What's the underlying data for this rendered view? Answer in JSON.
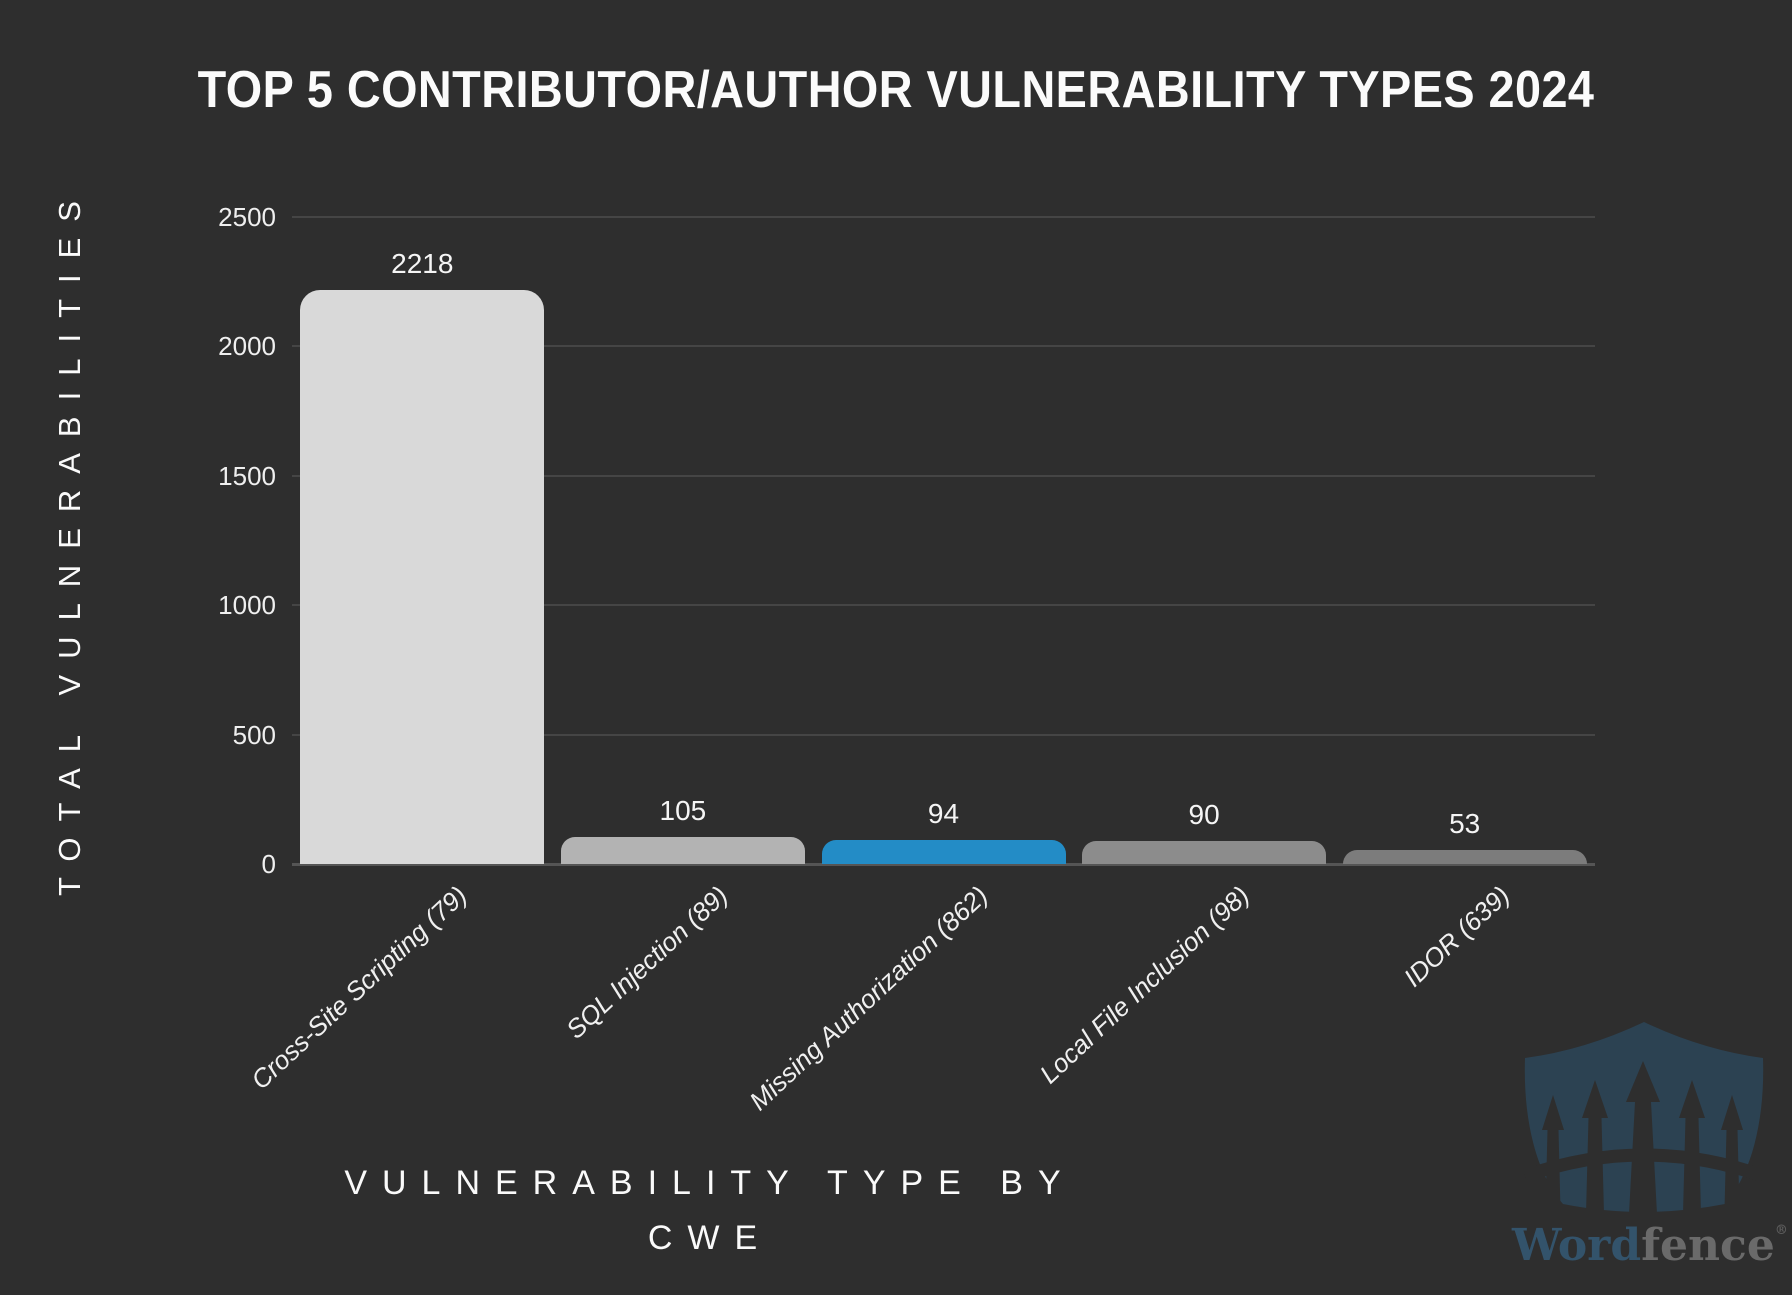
{
  "title": "TOP 5 CONTRIBUTOR/AUTHOR VULNERABILITY TYPES 2024",
  "chart_data": {
    "type": "bar",
    "title": "TOP 5 CONTRIBUTOR/AUTHOR VULNERABILITY TYPES 2024",
    "categories": [
      "Cross-Site Scripting (79)",
      "SQL Injection (89)",
      "Missing Authorization (862)",
      "Local File Inclusion (98)",
      "IDOR (639)"
    ],
    "values": [
      2218,
      105,
      94,
      90,
      53
    ],
    "bar_colors": [
      "#d9d9d9",
      "#b3b3b3",
      "#238cc6",
      "#8c8c8c",
      "#7c7c7c"
    ],
    "xlabel": "VULNERABILITY TYPE BY CWE",
    "ylabel": "TOTAL VULNERABILITIES",
    "ylim": [
      0,
      2500
    ],
    "yticks": [
      0,
      500,
      1000,
      1500,
      2000,
      2500
    ],
    "grid": true,
    "legend_position": "none"
  },
  "branding": {
    "logo_word": "Word",
    "logo_fence": "fence",
    "registered_mark": "®"
  },
  "colors": {
    "background": "#2e2e2e",
    "text": "#f5f5f5",
    "gridline": "#454545",
    "axis_line": "#555555",
    "accent_blue": "#238cc6",
    "logo_shield": "#2c4252",
    "logo_word_text": "#33536b",
    "logo_fence_text": "#6a6a6a"
  }
}
